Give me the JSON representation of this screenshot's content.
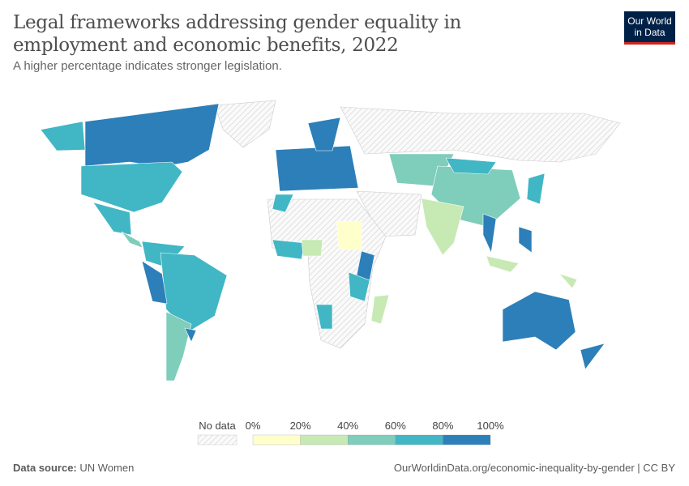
{
  "header": {
    "title": "Legal frameworks addressing gender equality in employment and economic benefits, 2022",
    "subtitle": "A higher percentage indicates stronger legislation.",
    "logo": "Our World in Data"
  },
  "chart_data": {
    "type": "choropleth-map",
    "title": "Legal frameworks addressing gender equality in employment and economic benefits, 2022",
    "subtitle": "A higher percentage indicates stronger legislation.",
    "legend": {
      "no_data_label": "No data",
      "tick_labels": [
        "0%",
        "20%",
        "40%",
        "60%",
        "80%",
        "100%"
      ],
      "bins": [
        {
          "range": [
            0,
            20
          ],
          "color": "#ffffcc"
        },
        {
          "range": [
            20,
            40
          ],
          "color": "#c7e9b4"
        },
        {
          "range": [
            40,
            60
          ],
          "color": "#7fcdbb"
        },
        {
          "range": [
            60,
            80
          ],
          "color": "#41b6c4"
        },
        {
          "range": [
            80,
            100
          ],
          "color": "#2c7fb8"
        }
      ],
      "placement": "bottom"
    }
  },
  "footer": {
    "source_label": "Data source:",
    "source": "UN Women",
    "url": "OurWorldinData.org/economic-inequality-by-gender | CC BY"
  }
}
